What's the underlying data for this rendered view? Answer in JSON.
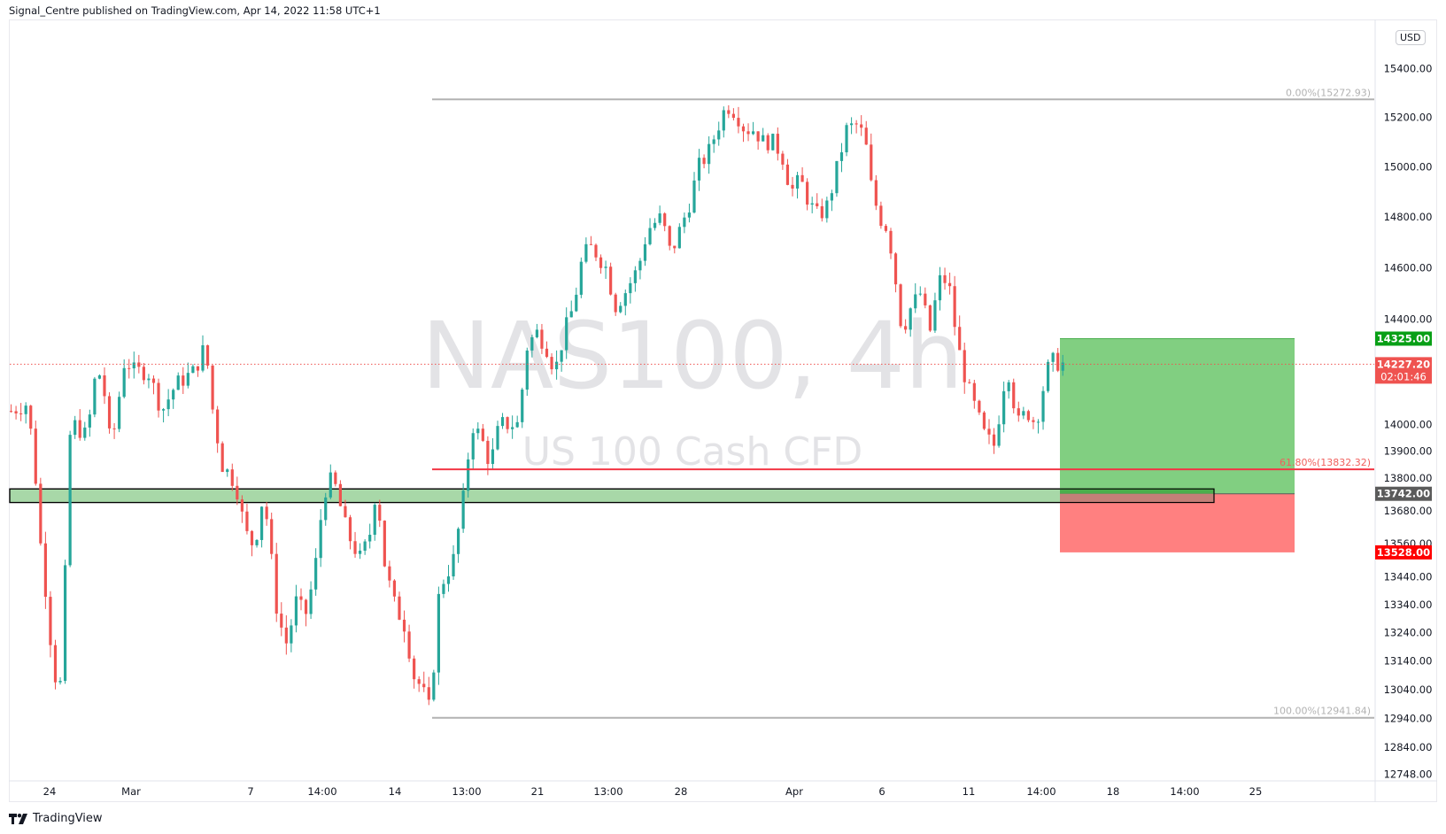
{
  "header": {
    "text": "Signal_Centre published on TradingView.com, Apr 14, 2022 11:58 UTC+1"
  },
  "footer": {
    "logo_text": "TradingView"
  },
  "currency": "USD",
  "watermark": {
    "symbol": "NAS100, 4h",
    "description": "US 100 Cash CFD"
  },
  "colors": {
    "up": "#26a69a",
    "down": "#ef5350",
    "fib_line": "#b2b2b2",
    "fib_618": "#f23645",
    "profit_zone": "#81cf81",
    "loss_zone": "#ff8080",
    "zone_fill": "#a8d8a8",
    "target_badge": "#089f16",
    "stop_badge": "#ff0000",
    "entry_badge": "#5b5b5b",
    "price_badge": "#ef5350"
  },
  "price_axis": {
    "labels": [
      "15400.00",
      "15200.00",
      "15000.00",
      "14800.00",
      "14600.00",
      "14400.00",
      "14000.00",
      "13900.00",
      "13800.00",
      "13680.00",
      "13560.00",
      "13440.00",
      "13340.00",
      "13240.00",
      "13140.00",
      "13040.00",
      "12940.00",
      "12840.00",
      "12748.00"
    ],
    "values": [
      15400,
      15200,
      15000,
      14800,
      14600,
      14400,
      14000,
      13900,
      13800,
      13680,
      13560,
      13440,
      13340,
      13240,
      13140,
      13040,
      12940,
      12840,
      12748
    ]
  },
  "time_axis": {
    "labels": [
      "24",
      "Mar",
      "7",
      "14:00",
      "14",
      "13:00",
      "21",
      "13:00",
      "28",
      "Apr",
      "6",
      "11",
      "14:00",
      "18",
      "14:00",
      "25"
    ],
    "x": [
      56,
      148,
      283,
      364,
      446,
      527,
      607,
      687,
      769,
      897,
      996,
      1094,
      1176,
      1257,
      1338,
      1418
    ]
  },
  "badges": {
    "target": "14325.00",
    "current_price": "14227.20",
    "countdown": "02:01:46",
    "entry": "13742.00",
    "stop": "13528.00"
  },
  "fib": {
    "level_0": "0.00%(15272.93)",
    "level_618": "61.80%(13832.32)",
    "level_100": "100.00%(12941.84)"
  },
  "chart_data": {
    "type": "candlestick",
    "title": "NAS100, 4h",
    "subtitle": "US 100 Cash CFD",
    "xlabel": "",
    "ylabel": "USD",
    "ylim": [
      12748,
      15450
    ],
    "x_ticks": [
      "24",
      "Mar",
      "7",
      "14:00",
      "14",
      "13:00",
      "21",
      "13:00",
      "28",
      "Apr",
      "6",
      "11",
      "14:00",
      "18",
      "14:00",
      "25"
    ],
    "close_waypoints_x": [
      12,
      30,
      40,
      45,
      50,
      58,
      65,
      70,
      75,
      80,
      95,
      100,
      110,
      120,
      135,
      145,
      160,
      175,
      190,
      210,
      222,
      230,
      240,
      255,
      265,
      275,
      285,
      295,
      300,
      310,
      320,
      330,
      340,
      350,
      360,
      375,
      390,
      400,
      407,
      415,
      425,
      440,
      445,
      455,
      465,
      475,
      490,
      500,
      510,
      520,
      530,
      540,
      560,
      570,
      580,
      590,
      600,
      610,
      620,
      630,
      640,
      655,
      665,
      675,
      690,
      700,
      715,
      725,
      735,
      745,
      755,
      765,
      775,
      785,
      795,
      805,
      815,
      825,
      835,
      845,
      855,
      865,
      875,
      885,
      895,
      905,
      915,
      925,
      935,
      940,
      950,
      960,
      970,
      975,
      985,
      995,
      1005,
      1015,
      1025,
      1035,
      1045,
      1055,
      1065,
      1075,
      1085,
      1090,
      1100,
      1110,
      1120,
      1125,
      1135,
      1150
    ],
    "close_waypoints_price": [
      14050,
      14080,
      13750,
      13500,
      13380,
      13100,
      13050,
      13400,
      13950,
      14000,
      13950,
      14150,
      14200,
      13900,
      14250,
      14200,
      14200,
      14050,
      14150,
      14200,
      14300,
      14050,
      13850,
      13780,
      13600,
      13550,
      13750,
      13450,
      13300,
      13200,
      13350,
      13300,
      13450,
      13750,
      13800,
      13600,
      13500,
      13600,
      13780,
      13500,
      13350,
      13250,
      13100,
      13050,
      12960,
      13400,
      13500,
      13700,
      14000,
      13950,
      13850,
      14000,
      14000,
      14300,
      14350,
      14300,
      14200,
      14350,
      14450,
      14650,
      14680,
      14600,
      14450,
      14500,
      14600,
      14750,
      14800,
      14650,
      14750,
      14850,
      15000,
      15050,
      15150,
      15250,
      15220,
      15150,
      15150,
      15100,
      15100,
      15050,
      14900,
      14950,
      14850,
      14800,
      14850,
      15000,
      15150,
      15170,
      15120,
      14950,
      14800,
      14750,
      14500,
      14350,
      14450,
      14500,
      14350,
      14550,
      14550,
      14300,
      14150,
      14050,
      13950,
      13920,
      14150,
      14200,
      14000,
      14050,
      14000,
      14100,
      14240,
      14227
    ],
    "last_price": 14227.2,
    "fibonacci": {
      "0%": 15272.93,
      "61.8%": 13832.32,
      "100%": 12941.84
    },
    "long_position": {
      "entry": 13742.0,
      "target": 14325.0,
      "stop": 13528.0
    },
    "support_zone": [
      13710,
      13760
    ]
  }
}
